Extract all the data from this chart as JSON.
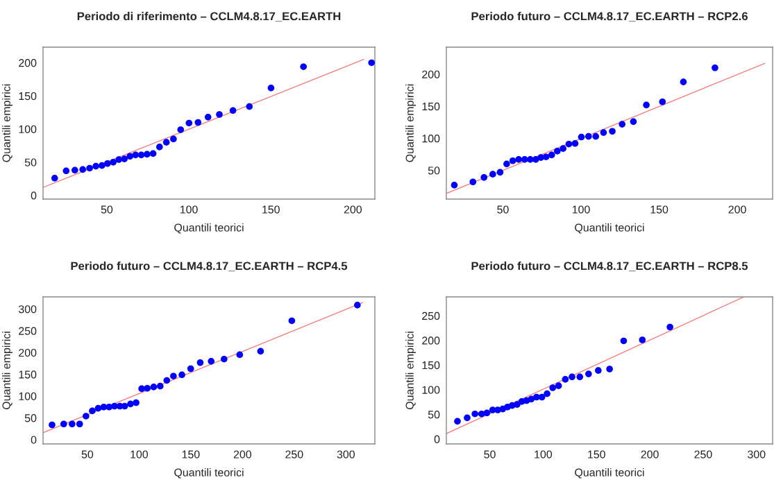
{
  "chart_data": [
    {
      "type": "scatter",
      "title": "Periodo di riferimento – CCLM4.8.17_EC.EARTH",
      "xlabel": "Quantili teorici",
      "ylabel": "Quantili empirici",
      "xlim": [
        11.1,
        213.4
      ],
      "ylim": [
        -5.6,
        223.5
      ],
      "xticks": [
        50,
        100,
        150,
        200
      ],
      "yticks": [
        0,
        50,
        100,
        150,
        200
      ],
      "series": [
        {
          "color": "#0000ff",
          "marker": "circle",
          "x": [
            18.2,
            25.2,
            30.5,
            35.3,
            39.5,
            43.3,
            47.0,
            50.4,
            53.9,
            57.3,
            60.7,
            64.1,
            67.5,
            71.0,
            74.5,
            78.2,
            82.1,
            86.3,
            90.6,
            95.0,
            100.1,
            105.6,
            111.7,
            118.6,
            126.9,
            136.9,
            150.1,
            169.9,
            211.4
          ],
          "values": [
            26,
            37,
            38,
            39,
            41,
            44,
            45,
            48,
            50,
            54,
            55,
            59,
            61,
            61,
            62,
            63,
            73,
            80,
            85,
            99,
            109,
            110,
            118,
            122,
            128,
            134,
            162,
            194,
            200
          ]
        },
        {
          "type": "line",
          "color": "#f08080",
          "line_style": "solid",
          "x": [
            11.1,
            206.6
          ],
          "values": [
            12,
            205
          ]
        }
      ]
    },
    {
      "type": "scatter",
      "title": "Periodo futuro – CCLM4.8.17_EC.EARTH – RCP2.6",
      "xlabel": "Quantili teorici",
      "ylabel": "Quantili empirici",
      "xlim": [
        13.8,
        222.6
      ],
      "ylim": [
        5.2,
        242.2
      ],
      "xticks": [
        50,
        100,
        150,
        200
      ],
      "yticks": [
        50,
        100,
        150,
        200
      ],
      "series": [
        {
          "color": "#0000ff",
          "marker": "circle",
          "x": [
            18.9,
            30.8,
            37.9,
            43.5,
            48.2,
            52.4,
            56.3,
            60.1,
            63.9,
            67.5,
            71.0,
            74.3,
            77.6,
            81.2,
            84.8,
            88.5,
            92.2,
            96.2,
            100.2,
            104.8,
            109.4,
            114.4,
            120.0,
            126.3,
            133.5,
            141.8,
            152.1,
            165.5,
            185.7
          ],
          "values": [
            27,
            32,
            39,
            44,
            47,
            60,
            65,
            67,
            67,
            67,
            67,
            70,
            71,
            74,
            80,
            84,
            91,
            92,
            102,
            103,
            103,
            109,
            111,
            122,
            126,
            152,
            157,
            188,
            210
          ]
        },
        {
          "type": "line",
          "color": "#f08080",
          "line_style": "solid",
          "x": [
            13.8,
            217.6
          ],
          "values": [
            14,
            217
          ]
        }
      ]
    },
    {
      "type": "scatter",
      "title": "Periodo futuro – CCLM4.8.17_EC.EARTH – RCP4.5",
      "xlabel": "Quantili teorici",
      "ylabel": "Quantili empirici",
      "xlim": [
        7.1,
        328.0
      ],
      "ylim": [
        -9.8,
        327.9
      ],
      "xticks": [
        50,
        100,
        150,
        200,
        250,
        300
      ],
      "yticks": [
        0,
        50,
        100,
        150,
        200,
        250,
        300
      ],
      "series": [
        {
          "color": "#0000ff",
          "marker": "circle",
          "x": [
            15.8,
            27.1,
            35.2,
            42.5,
            48.6,
            54.7,
            60.4,
            65.8,
            71.0,
            76.2,
            81.4,
            86.1,
            91.7,
            97.1,
            102.5,
            107.9,
            114.1,
            120.4,
            126.8,
            133.2,
            141.4,
            149.9,
            159.1,
            169.7,
            182.2,
            197.3,
            217.5,
            247.7,
            311.1
          ],
          "values": [
            34,
            36,
            36,
            36,
            54,
            66,
            72,
            75,
            75,
            77,
            77,
            77,
            82,
            85,
            117,
            118,
            121,
            123,
            136,
            146,
            149,
            163,
            177,
            180,
            185,
            195,
            203,
            273,
            309
          ]
        },
        {
          "type": "line",
          "color": "#f08080",
          "line_style": "solid",
          "x": [
            7.1,
            316.3
          ],
          "values": [
            16,
            315
          ]
        }
      ]
    },
    {
      "type": "scatter",
      "title": "Periodo futuro – CCLM4.8.17_EC.EARTH – RCP8.5",
      "xlabel": "Quantili teorici",
      "ylabel": "Quantili empirici",
      "xlim": [
        9.3,
        315.1
      ],
      "ylim": [
        -9.9,
        288.2
      ],
      "xticks": [
        50,
        100,
        150,
        200,
        250,
        300
      ],
      "yticks": [
        0,
        50,
        100,
        150,
        200,
        250
      ],
      "series": [
        {
          "color": "#0000ff",
          "marker": "circle",
          "x": [
            19.7,
            28.8,
            36.1,
            42.3,
            47.3,
            52.7,
            57.5,
            62.2,
            66.6,
            71.0,
            75.6,
            80.0,
            84.5,
            88.9,
            93.8,
            98.9,
            103.7,
            109.0,
            114.5,
            120.8,
            127.1,
            134.4,
            142.6,
            151.7,
            162.3,
            175.5,
            193.0,
            218.9
          ],
          "values": [
            36,
            43,
            51,
            51,
            53,
            59,
            59,
            61,
            65,
            68,
            70,
            76,
            78,
            81,
            85,
            85,
            92,
            104,
            108,
            121,
            126,
            126,
            132,
            139,
            142,
            199,
            201,
            227
          ]
        },
        {
          "type": "line",
          "color": "#f08080",
          "line_style": "solid",
          "x": [
            9.3,
            288.0
          ],
          "values": [
            11,
            288
          ]
        }
      ]
    }
  ]
}
